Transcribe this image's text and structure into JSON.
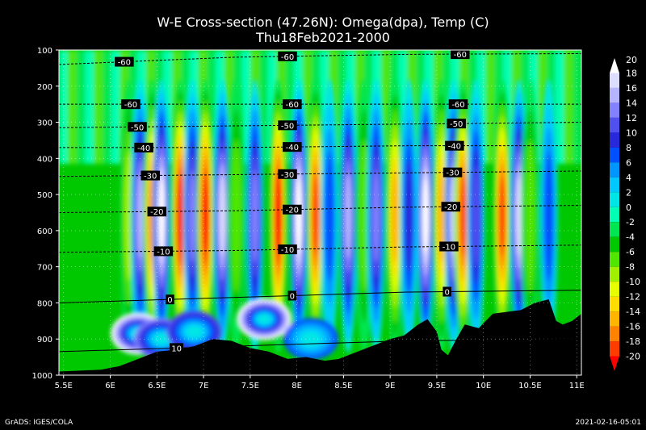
{
  "header": {
    "title": "W-E Cross-section (47.26N): Omega(dpa), Temp (C)",
    "subtitle": "Thu18Feb2021-2000"
  },
  "footer": {
    "left": "GrADS: IGES/COLA",
    "right": "2021-02-16-05:01"
  },
  "colors": {
    "background": "#000000",
    "terrain": "#000000",
    "text": "#ffffff"
  },
  "chart_data": {
    "type": "heatmap",
    "title": "W-E Cross-section (47.26N): Omega(dpa), Temp (C)",
    "subtitle": "Thu18Feb2021-2000",
    "x_axis": {
      "range": [
        5.45,
        11.05
      ],
      "ticks": [
        "5.5E",
        "6E",
        "6.5E",
        "7E",
        "7.5E",
        "8E",
        "8.5E",
        "9E",
        "9.5E",
        "10E",
        "10.5E",
        "11E"
      ],
      "tick_values": [
        5.5,
        6,
        6.5,
        7,
        7.5,
        8,
        8.5,
        9,
        9.5,
        10,
        10.5,
        11
      ]
    },
    "y_axis": {
      "range": [
        100,
        1000
      ],
      "inverted": true,
      "ticks": [
        "100",
        "200",
        "300",
        "400",
        "500",
        "600",
        "700",
        "800",
        "900",
        "1000"
      ],
      "tick_values": [
        100,
        200,
        300,
        400,
        500,
        600,
        700,
        800,
        900,
        1000
      ]
    },
    "grid": true,
    "colorbar": {
      "labels": [
        "20",
        "18",
        "16",
        "14",
        "12",
        "10",
        "8",
        "6",
        "4",
        "2",
        "0",
        "-2",
        "-4",
        "-6",
        "-8",
        "-10",
        "-12",
        "-14",
        "-16",
        "-18",
        "-20"
      ],
      "colors": [
        "#ffffff",
        "#dcdcff",
        "#b4b4ff",
        "#8282ff",
        "#5050f0",
        "#2828dc",
        "#0050ff",
        "#0096ff",
        "#00c8ff",
        "#00e6e6",
        "#00ffb4",
        "#00e650",
        "#00c800",
        "#50e600",
        "#a0f000",
        "#e6ff00",
        "#ffdc00",
        "#ffb400",
        "#ff8200",
        "#ff3c00",
        "#ff0000"
      ]
    },
    "temperature_contours": [
      {
        "label": "-60",
        "levels_hpa": [
          140,
          120,
          112,
          110
        ]
      },
      {
        "label": "-60",
        "levels_hpa": [
          250,
          250,
          250,
          250
        ]
      },
      {
        "label": "-50",
        "levels_hpa": [
          315,
          310,
          305,
          300
        ]
      },
      {
        "label": "-40",
        "levels_hpa": [
          370,
          370,
          365,
          365
        ]
      },
      {
        "label": "-30",
        "levels_hpa": [
          450,
          445,
          440,
          435
        ]
      },
      {
        "label": "-20",
        "levels_hpa": [
          550,
          545,
          535,
          530
        ]
      },
      {
        "label": "-10",
        "levels_hpa": [
          660,
          655,
          645,
          640
        ]
      },
      {
        "label": "0",
        "levels_hpa": [
          800,
          785,
          770,
          765
        ]
      },
      {
        "label": "10",
        "levels_hpa": [
          935,
          920,
          905,
          900
        ]
      }
    ],
    "omega_columns": [
      {
        "lon": 6.2,
        "value": -8
      },
      {
        "lon": 6.32,
        "value": 16
      },
      {
        "lon": 6.45,
        "value": -16
      },
      {
        "lon": 6.55,
        "value": 20
      },
      {
        "lon": 6.75,
        "value": -20
      },
      {
        "lon": 6.88,
        "value": 14
      },
      {
        "lon": 7.02,
        "value": -20
      },
      {
        "lon": 7.2,
        "value": 18
      },
      {
        "lon": 7.35,
        "value": -6
      },
      {
        "lon": 7.55,
        "value": 14
      },
      {
        "lon": 7.8,
        "value": -20
      },
      {
        "lon": 8.02,
        "value": 20
      },
      {
        "lon": 8.2,
        "value": -18
      },
      {
        "lon": 8.35,
        "value": 8
      },
      {
        "lon": 8.55,
        "value": 16
      },
      {
        "lon": 8.72,
        "value": -6
      },
      {
        "lon": 8.85,
        "value": 14
      },
      {
        "lon": 9.05,
        "value": -14
      },
      {
        "lon": 9.2,
        "value": 10
      },
      {
        "lon": 9.38,
        "value": 20
      },
      {
        "lon": 9.55,
        "value": -14
      },
      {
        "lon": 9.68,
        "value": 18
      },
      {
        "lon": 9.78,
        "value": -18
      },
      {
        "lon": 9.92,
        "value": 12
      },
      {
        "lon": 10.2,
        "value": -18
      },
      {
        "lon": 10.38,
        "value": 18
      },
      {
        "lon": 10.5,
        "value": -6
      },
      {
        "lon": 10.7,
        "value": 8
      }
    ],
    "terrain_pressure_hpa": [
      [
        5.45,
        990
      ],
      [
        5.9,
        985
      ],
      [
        6.1,
        975
      ],
      [
        6.3,
        955
      ],
      [
        6.5,
        935
      ],
      [
        6.7,
        930
      ],
      [
        6.9,
        920
      ],
      [
        7.1,
        900
      ],
      [
        7.3,
        905
      ],
      [
        7.5,
        925
      ],
      [
        7.7,
        935
      ],
      [
        7.9,
        955
      ],
      [
        8.1,
        950
      ],
      [
        8.3,
        960
      ],
      [
        8.45,
        955
      ],
      [
        8.6,
        940
      ],
      [
        8.75,
        925
      ],
      [
        8.9,
        910
      ],
      [
        9.0,
        900
      ],
      [
        9.15,
        890
      ],
      [
        9.3,
        860
      ],
      [
        9.4,
        845
      ],
      [
        9.5,
        880
      ],
      [
        9.55,
        930
      ],
      [
        9.62,
        945
      ],
      [
        9.7,
        905
      ],
      [
        9.8,
        860
      ],
      [
        9.95,
        870
      ],
      [
        10.1,
        830
      ],
      [
        10.25,
        825
      ],
      [
        10.4,
        820
      ],
      [
        10.55,
        800
      ],
      [
        10.7,
        790
      ],
      [
        10.78,
        850
      ],
      [
        10.85,
        860
      ],
      [
        10.95,
        850
      ],
      [
        11.05,
        830
      ]
    ]
  }
}
